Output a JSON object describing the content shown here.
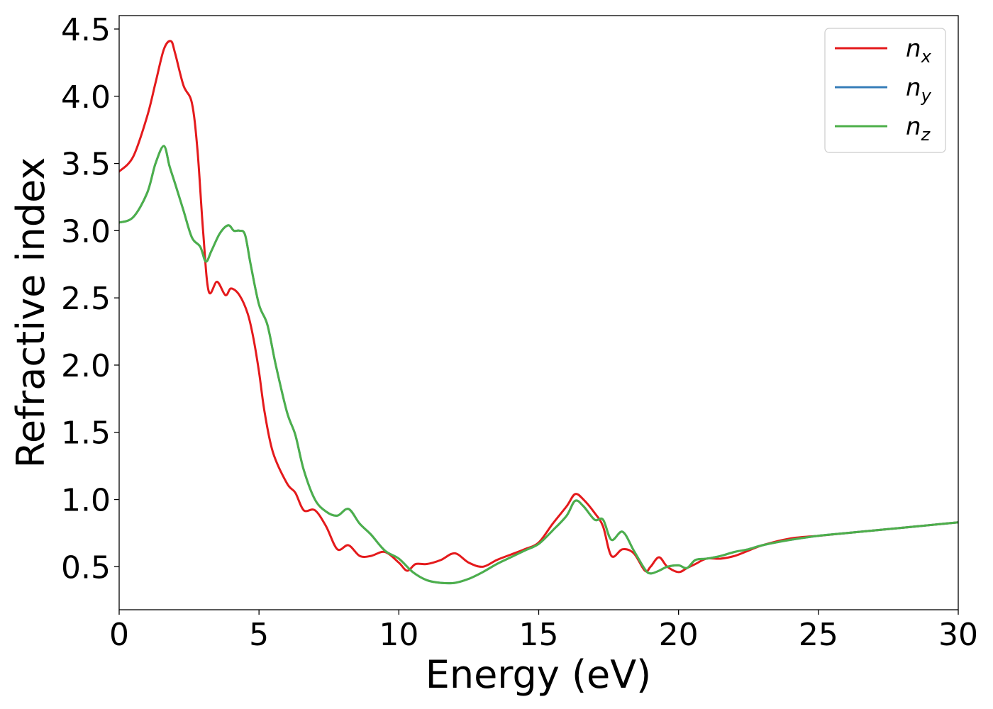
{
  "chart_data": {
    "type": "line",
    "title": "",
    "xlabel": "Energy (eV)",
    "ylabel": "Refractive index",
    "xlim": [
      0,
      30
    ],
    "ylim": [
      0.18,
      4.6
    ],
    "xticks": [
      0,
      5,
      10,
      15,
      20,
      25,
      30
    ],
    "yticks": [
      0.5,
      1.0,
      1.5,
      2.0,
      2.5,
      3.0,
      3.5,
      4.0,
      4.5
    ],
    "xtick_labels": [
      "0",
      "5",
      "10",
      "15",
      "20",
      "25",
      "30"
    ],
    "ytick_labels": [
      "0.5",
      "1.0",
      "1.5",
      "2.0",
      "2.5",
      "3.0",
      "3.5",
      "4.0",
      "4.5"
    ],
    "grid": false,
    "legend_position": "top-right",
    "series": [
      {
        "name": "n_x",
        "legend_base": "n",
        "legend_sub": "x",
        "color": "#e41a1c",
        "x": [
          0,
          0.5,
          1.0,
          1.3,
          1.6,
          1.85,
          2.0,
          2.3,
          2.6,
          2.8,
          3.0,
          3.2,
          3.5,
          3.8,
          4.0,
          4.3,
          4.6,
          4.8,
          5.0,
          5.2,
          5.5,
          6.0,
          6.3,
          6.6,
          7.0,
          7.4,
          7.8,
          8.2,
          8.6,
          9.0,
          9.5,
          10.0,
          10.3,
          10.6,
          11.0,
          11.5,
          12.0,
          12.5,
          13.0,
          13.5,
          14.0,
          14.5,
          15.0,
          15.5,
          16.0,
          16.3,
          16.6,
          17.0,
          17.3,
          17.6,
          18.0,
          18.4,
          18.8,
          19.0,
          19.3,
          19.6,
          20.0,
          20.3,
          20.6,
          21.0,
          21.5,
          22.0,
          22.5,
          23.0,
          24.0,
          25.0,
          26.0,
          27.0,
          28.0,
          29.0,
          30.0
        ],
        "y": [
          3.44,
          3.55,
          3.85,
          4.1,
          4.35,
          4.41,
          4.32,
          4.08,
          3.95,
          3.6,
          3.0,
          2.55,
          2.62,
          2.52,
          2.57,
          2.52,
          2.38,
          2.2,
          1.95,
          1.65,
          1.35,
          1.12,
          1.05,
          0.92,
          0.92,
          0.8,
          0.63,
          0.66,
          0.58,
          0.58,
          0.61,
          0.53,
          0.47,
          0.52,
          0.52,
          0.55,
          0.6,
          0.53,
          0.5,
          0.55,
          0.59,
          0.63,
          0.68,
          0.82,
          0.95,
          1.04,
          1.0,
          0.9,
          0.8,
          0.58,
          0.63,
          0.6,
          0.47,
          0.5,
          0.57,
          0.5,
          0.46,
          0.49,
          0.52,
          0.56,
          0.56,
          0.58,
          0.62,
          0.66,
          0.71,
          0.73,
          0.75,
          0.77,
          0.79,
          0.81,
          0.83
        ]
      },
      {
        "name": "n_y",
        "legend_base": "n",
        "legend_sub": "y",
        "color": "#377eb8",
        "x": [
          0,
          0.5,
          1.0,
          1.3,
          1.6,
          1.8,
          2.0,
          2.3,
          2.6,
          2.9,
          3.1,
          3.3,
          3.6,
          3.9,
          4.1,
          4.3,
          4.5,
          4.7,
          5.0,
          5.3,
          5.6,
          6.0,
          6.3,
          6.6,
          7.0,
          7.4,
          7.8,
          8.2,
          8.6,
          9.0,
          9.5,
          10.0,
          10.5,
          11.0,
          11.5,
          12.0,
          12.5,
          13.0,
          13.5,
          14.0,
          14.5,
          15.0,
          15.5,
          16.0,
          16.3,
          16.6,
          17.0,
          17.3,
          17.6,
          18.0,
          18.4,
          18.8,
          19.0,
          19.3,
          19.6,
          20.0,
          20.3,
          20.6,
          21.0,
          21.5,
          22.0,
          22.5,
          23.0,
          24.0,
          25.0,
          26.0,
          27.0,
          28.0,
          29.0,
          30.0
        ],
        "y": [
          3.06,
          3.1,
          3.28,
          3.5,
          3.63,
          3.48,
          3.35,
          3.15,
          2.95,
          2.88,
          2.77,
          2.85,
          2.98,
          3.04,
          3.0,
          3.0,
          2.97,
          2.75,
          2.45,
          2.3,
          2.0,
          1.65,
          1.48,
          1.22,
          1.0,
          0.91,
          0.88,
          0.93,
          0.82,
          0.74,
          0.62,
          0.56,
          0.46,
          0.4,
          0.38,
          0.38,
          0.41,
          0.46,
          0.52,
          0.57,
          0.62,
          0.67,
          0.77,
          0.88,
          0.99,
          0.95,
          0.85,
          0.85,
          0.7,
          0.76,
          0.62,
          0.48,
          0.45,
          0.47,
          0.5,
          0.51,
          0.49,
          0.55,
          0.56,
          0.58,
          0.61,
          0.63,
          0.66,
          0.7,
          0.73,
          0.75,
          0.77,
          0.79,
          0.81,
          0.83
        ]
      },
      {
        "name": "n_z",
        "legend_base": "n",
        "legend_sub": "z",
        "color": "#4daf4a",
        "x": [
          0,
          0.5,
          1.0,
          1.3,
          1.6,
          1.8,
          2.0,
          2.3,
          2.6,
          2.9,
          3.1,
          3.3,
          3.6,
          3.9,
          4.1,
          4.3,
          4.5,
          4.7,
          5.0,
          5.3,
          5.6,
          6.0,
          6.3,
          6.6,
          7.0,
          7.4,
          7.8,
          8.2,
          8.6,
          9.0,
          9.5,
          10.0,
          10.5,
          11.0,
          11.5,
          12.0,
          12.5,
          13.0,
          13.5,
          14.0,
          14.5,
          15.0,
          15.5,
          16.0,
          16.3,
          16.6,
          17.0,
          17.3,
          17.6,
          18.0,
          18.4,
          18.8,
          19.0,
          19.3,
          19.6,
          20.0,
          20.3,
          20.6,
          21.0,
          21.5,
          22.0,
          22.5,
          23.0,
          24.0,
          25.0,
          26.0,
          27.0,
          28.0,
          29.0,
          30.0
        ],
        "y": [
          3.06,
          3.1,
          3.28,
          3.5,
          3.63,
          3.48,
          3.35,
          3.15,
          2.95,
          2.88,
          2.77,
          2.85,
          2.98,
          3.04,
          3.0,
          3.0,
          2.97,
          2.75,
          2.45,
          2.3,
          2.0,
          1.65,
          1.48,
          1.22,
          1.0,
          0.91,
          0.88,
          0.93,
          0.82,
          0.74,
          0.62,
          0.56,
          0.46,
          0.4,
          0.38,
          0.38,
          0.41,
          0.46,
          0.52,
          0.57,
          0.62,
          0.67,
          0.77,
          0.88,
          0.99,
          0.95,
          0.85,
          0.85,
          0.7,
          0.76,
          0.62,
          0.48,
          0.45,
          0.47,
          0.5,
          0.51,
          0.49,
          0.55,
          0.56,
          0.58,
          0.61,
          0.63,
          0.66,
          0.7,
          0.73,
          0.75,
          0.77,
          0.79,
          0.81,
          0.83
        ]
      }
    ]
  }
}
